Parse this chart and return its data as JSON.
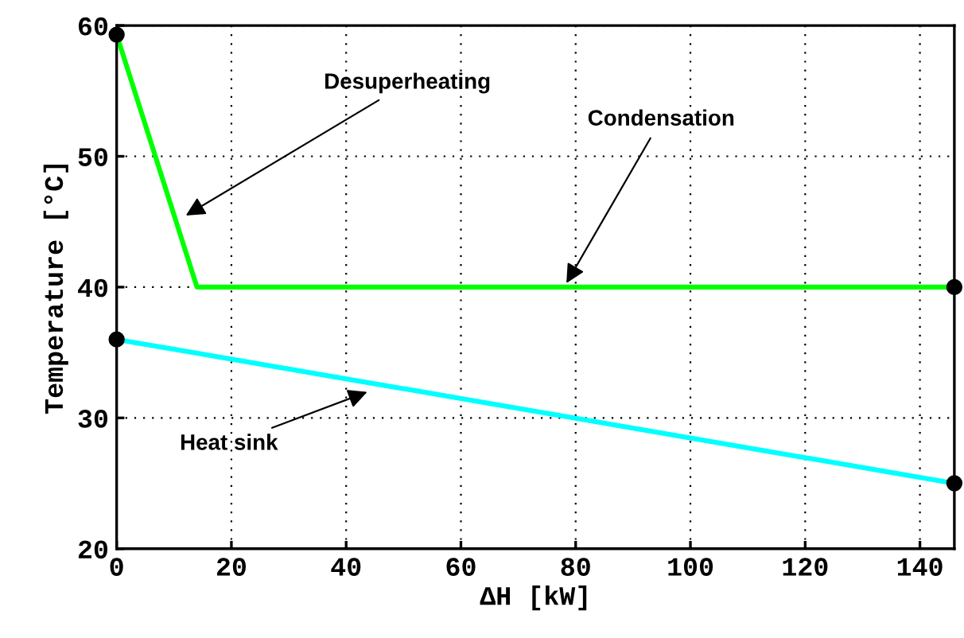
{
  "chart_data": {
    "type": "line",
    "xlabel": "ΔH [kW]",
    "ylabel": "Temperature [°C]",
    "series": [
      {
        "color": "#00ff00",
        "x": [
          0,
          14,
          146
        ],
        "values": [
          59.3,
          40,
          40
        ],
        "marker": "none"
      },
      {
        "color": "#00ffff",
        "x": [
          0,
          146
        ],
        "values": [
          36,
          25
        ],
        "marker": "none"
      },
      {
        "type": "scatter",
        "color": "#000000",
        "x": [
          0,
          146,
          0,
          146
        ],
        "values": [
          59.3,
          40,
          36,
          25
        ],
        "marker": "circle"
      }
    ],
    "annotations": [
      {
        "text": "Desuperheating",
        "x": 11.4,
        "y": 45.3
      },
      {
        "text": "Condensation",
        "x": 78,
        "y": 40
      },
      {
        "text": "Heat sink",
        "x": 44.4,
        "y": 32.1
      }
    ],
    "xlim": [
      0,
      146
    ],
    "ylim": [
      20,
      60
    ],
    "xticks": [
      0,
      20,
      40,
      60,
      80,
      100,
      120,
      140
    ],
    "yticks": [
      20,
      30,
      40,
      50,
      60
    ],
    "grid": true,
    "legend": false
  }
}
